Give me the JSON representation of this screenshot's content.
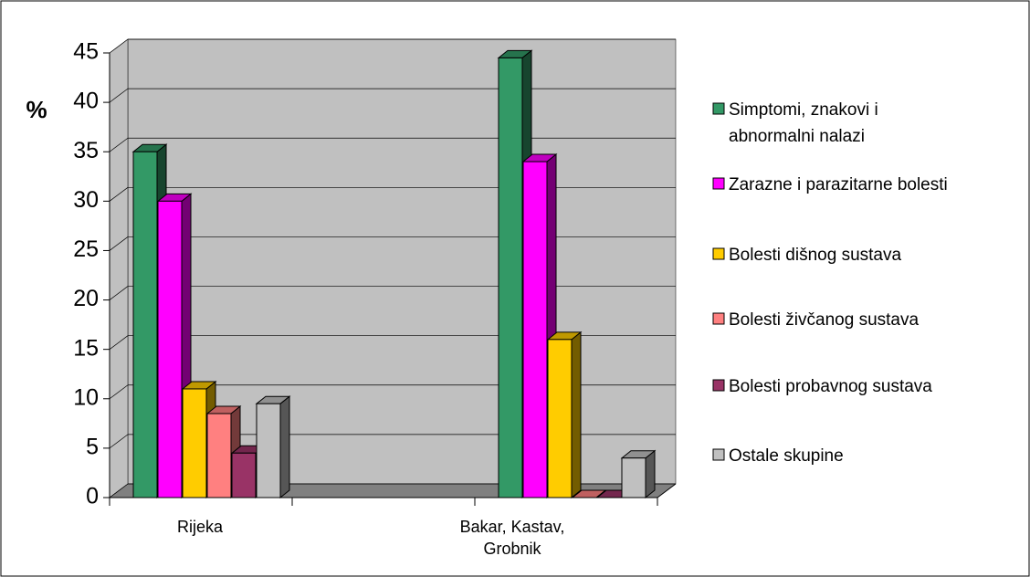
{
  "chart_data": {
    "type": "bar3d",
    "y_label": "%",
    "categories": [
      "Rijeka",
      "Bakar, Kastav,\nGrobnik"
    ],
    "series": [
      {
        "name": "Simptomi, znakovi i\nabnormalni nalazi",
        "color": "#339966",
        "values": [
          35,
          44.5
        ]
      },
      {
        "name": "Zarazne i parazitarne bolesti",
        "color": "#ff00ff",
        "values": [
          30,
          34
        ]
      },
      {
        "name": "Bolesti dišnog sustava",
        "color": "#ffcc00",
        "values": [
          11,
          16
        ]
      },
      {
        "name": "Bolesti živčanog sustava",
        "color": "#ff8080",
        "values": [
          8.5,
          0
        ]
      },
      {
        "name": "Bolesti probavnog sustava",
        "color": "#993366",
        "values": [
          4.5,
          0
        ]
      },
      {
        "name": "Ostale skupine",
        "color": "#c0c0c0",
        "values": [
          9.5,
          4
        ]
      }
    ],
    "ylim": [
      0,
      45
    ],
    "yticks": [
      0,
      5,
      10,
      15,
      20,
      25,
      30,
      35,
      40,
      45
    ],
    "grid": true,
    "legend": "right"
  }
}
